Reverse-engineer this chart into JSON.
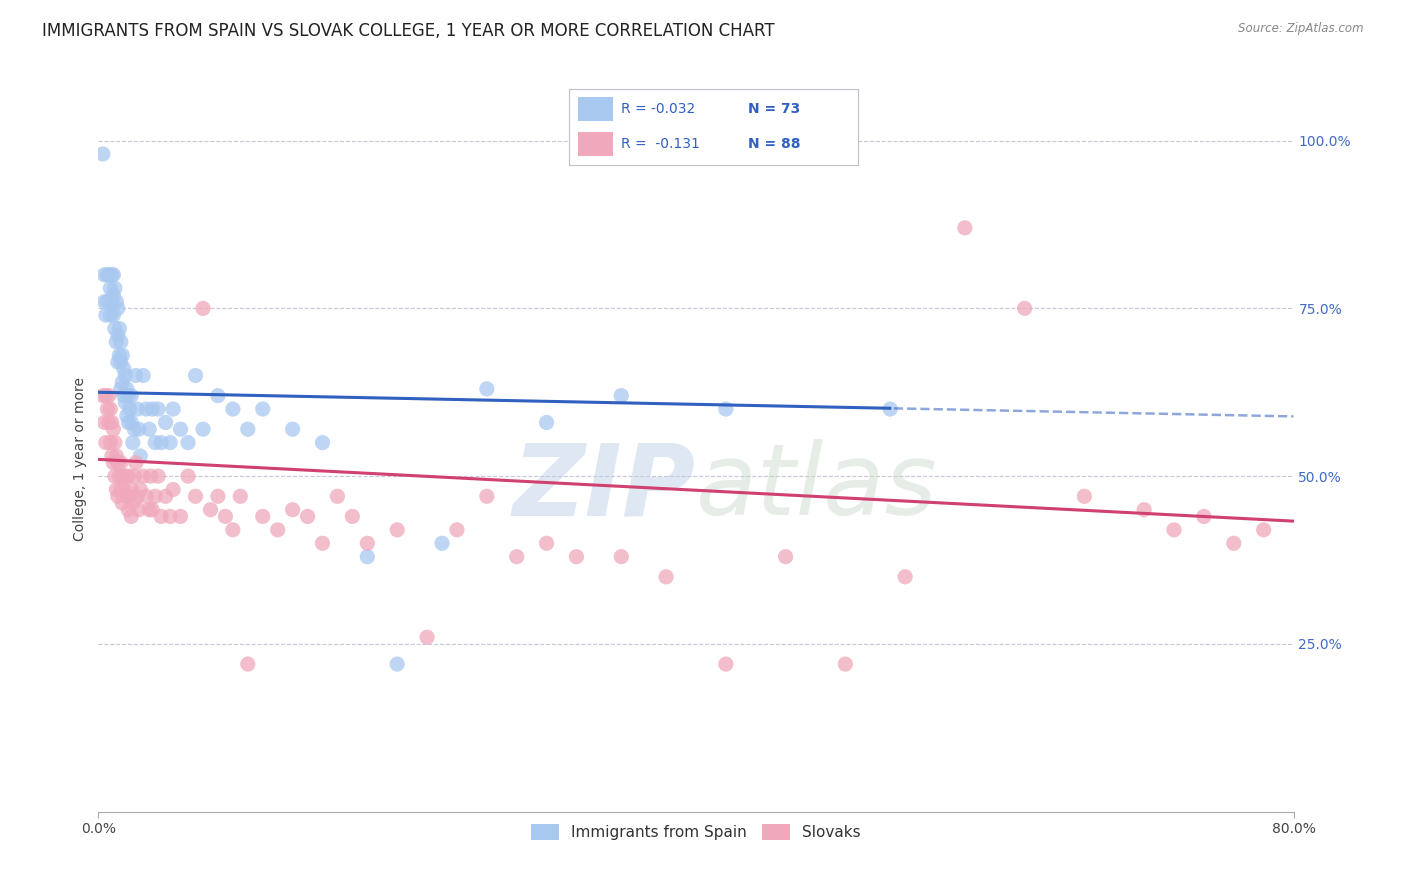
{
  "title": "IMMIGRANTS FROM SPAIN VS SLOVAK COLLEGE, 1 YEAR OR MORE CORRELATION CHART",
  "source": "Source: ZipAtlas.com",
  "ylabel": "College, 1 year or more",
  "xmin": 0.0,
  "xmax": 0.8,
  "ymin": 0.0,
  "ymax": 1.05,
  "y_tick_vals": [
    0.25,
    0.5,
    0.75,
    1.0
  ],
  "legend_labels": [
    "Immigrants from Spain",
    "Slovaks"
  ],
  "legend_R": [
    "-0.032",
    "-0.131"
  ],
  "legend_N": [
    "73",
    "88"
  ],
  "blue_color": "#a8c8f0",
  "pink_color": "#f0a8bc",
  "line_blue": "#3060c0",
  "line_pink": "#d04070",
  "watermark_text": "ZIP",
  "watermark_text2": "atlas",
  "title_fontsize": 12,
  "axis_label_fontsize": 10,
  "tick_fontsize": 10,
  "blue_line_intercept": 0.625,
  "blue_line_slope": -0.045,
  "pink_line_intercept": 0.525,
  "pink_line_slope": -0.115,
  "blue_scatter_x": [
    0.003,
    0.004,
    0.004,
    0.005,
    0.006,
    0.006,
    0.007,
    0.008,
    0.008,
    0.009,
    0.009,
    0.01,
    0.01,
    0.01,
    0.011,
    0.011,
    0.012,
    0.012,
    0.013,
    0.013,
    0.013,
    0.014,
    0.014,
    0.015,
    0.015,
    0.015,
    0.016,
    0.016,
    0.017,
    0.017,
    0.018,
    0.018,
    0.019,
    0.019,
    0.02,
    0.02,
    0.021,
    0.022,
    0.022,
    0.023,
    0.024,
    0.025,
    0.026,
    0.027,
    0.028,
    0.03,
    0.032,
    0.034,
    0.036,
    0.038,
    0.04,
    0.042,
    0.045,
    0.048,
    0.05,
    0.055,
    0.06,
    0.065,
    0.07,
    0.08,
    0.09,
    0.1,
    0.11,
    0.13,
    0.15,
    0.18,
    0.2,
    0.23,
    0.26,
    0.3,
    0.35,
    0.42,
    0.53
  ],
  "blue_scatter_y": [
    0.98,
    0.8,
    0.76,
    0.74,
    0.8,
    0.76,
    0.8,
    0.78,
    0.74,
    0.8,
    0.76,
    0.8,
    0.77,
    0.74,
    0.78,
    0.72,
    0.76,
    0.7,
    0.75,
    0.71,
    0.67,
    0.72,
    0.68,
    0.7,
    0.67,
    0.63,
    0.68,
    0.64,
    0.66,
    0.62,
    0.65,
    0.61,
    0.63,
    0.59,
    0.62,
    0.58,
    0.6,
    0.62,
    0.58,
    0.55,
    0.57,
    0.65,
    0.6,
    0.57,
    0.53,
    0.65,
    0.6,
    0.57,
    0.6,
    0.55,
    0.6,
    0.55,
    0.58,
    0.55,
    0.6,
    0.57,
    0.55,
    0.65,
    0.57,
    0.62,
    0.6,
    0.57,
    0.6,
    0.57,
    0.55,
    0.38,
    0.22,
    0.4,
    0.63,
    0.58,
    0.62,
    0.6,
    0.6
  ],
  "pink_scatter_x": [
    0.003,
    0.004,
    0.005,
    0.005,
    0.006,
    0.007,
    0.007,
    0.008,
    0.008,
    0.009,
    0.009,
    0.01,
    0.01,
    0.011,
    0.011,
    0.012,
    0.012,
    0.013,
    0.013,
    0.014,
    0.015,
    0.015,
    0.016,
    0.016,
    0.017,
    0.018,
    0.019,
    0.02,
    0.02,
    0.021,
    0.022,
    0.022,
    0.023,
    0.024,
    0.025,
    0.026,
    0.027,
    0.028,
    0.03,
    0.032,
    0.034,
    0.035,
    0.036,
    0.038,
    0.04,
    0.042,
    0.045,
    0.048,
    0.05,
    0.055,
    0.06,
    0.065,
    0.07,
    0.075,
    0.08,
    0.085,
    0.09,
    0.095,
    0.1,
    0.11,
    0.12,
    0.13,
    0.14,
    0.15,
    0.16,
    0.17,
    0.18,
    0.2,
    0.22,
    0.24,
    0.26,
    0.28,
    0.3,
    0.32,
    0.35,
    0.38,
    0.42,
    0.46,
    0.5,
    0.54,
    0.58,
    0.62,
    0.66,
    0.7,
    0.72,
    0.74,
    0.76,
    0.78
  ],
  "pink_scatter_y": [
    0.62,
    0.58,
    0.62,
    0.55,
    0.6,
    0.62,
    0.58,
    0.6,
    0.55,
    0.58,
    0.53,
    0.57,
    0.52,
    0.55,
    0.5,
    0.53,
    0.48,
    0.52,
    0.47,
    0.5,
    0.52,
    0.48,
    0.5,
    0.46,
    0.48,
    0.5,
    0.47,
    0.5,
    0.45,
    0.47,
    0.48,
    0.44,
    0.46,
    0.5,
    0.52,
    0.47,
    0.45,
    0.48,
    0.5,
    0.47,
    0.45,
    0.5,
    0.45,
    0.47,
    0.5,
    0.44,
    0.47,
    0.44,
    0.48,
    0.44,
    0.5,
    0.47,
    0.75,
    0.45,
    0.47,
    0.44,
    0.42,
    0.47,
    0.22,
    0.44,
    0.42,
    0.45,
    0.44,
    0.4,
    0.47,
    0.44,
    0.4,
    0.42,
    0.26,
    0.42,
    0.47,
    0.38,
    0.4,
    0.38,
    0.38,
    0.35,
    0.22,
    0.38,
    0.22,
    0.35,
    0.87,
    0.75,
    0.47,
    0.45,
    0.42,
    0.44,
    0.4,
    0.42
  ]
}
